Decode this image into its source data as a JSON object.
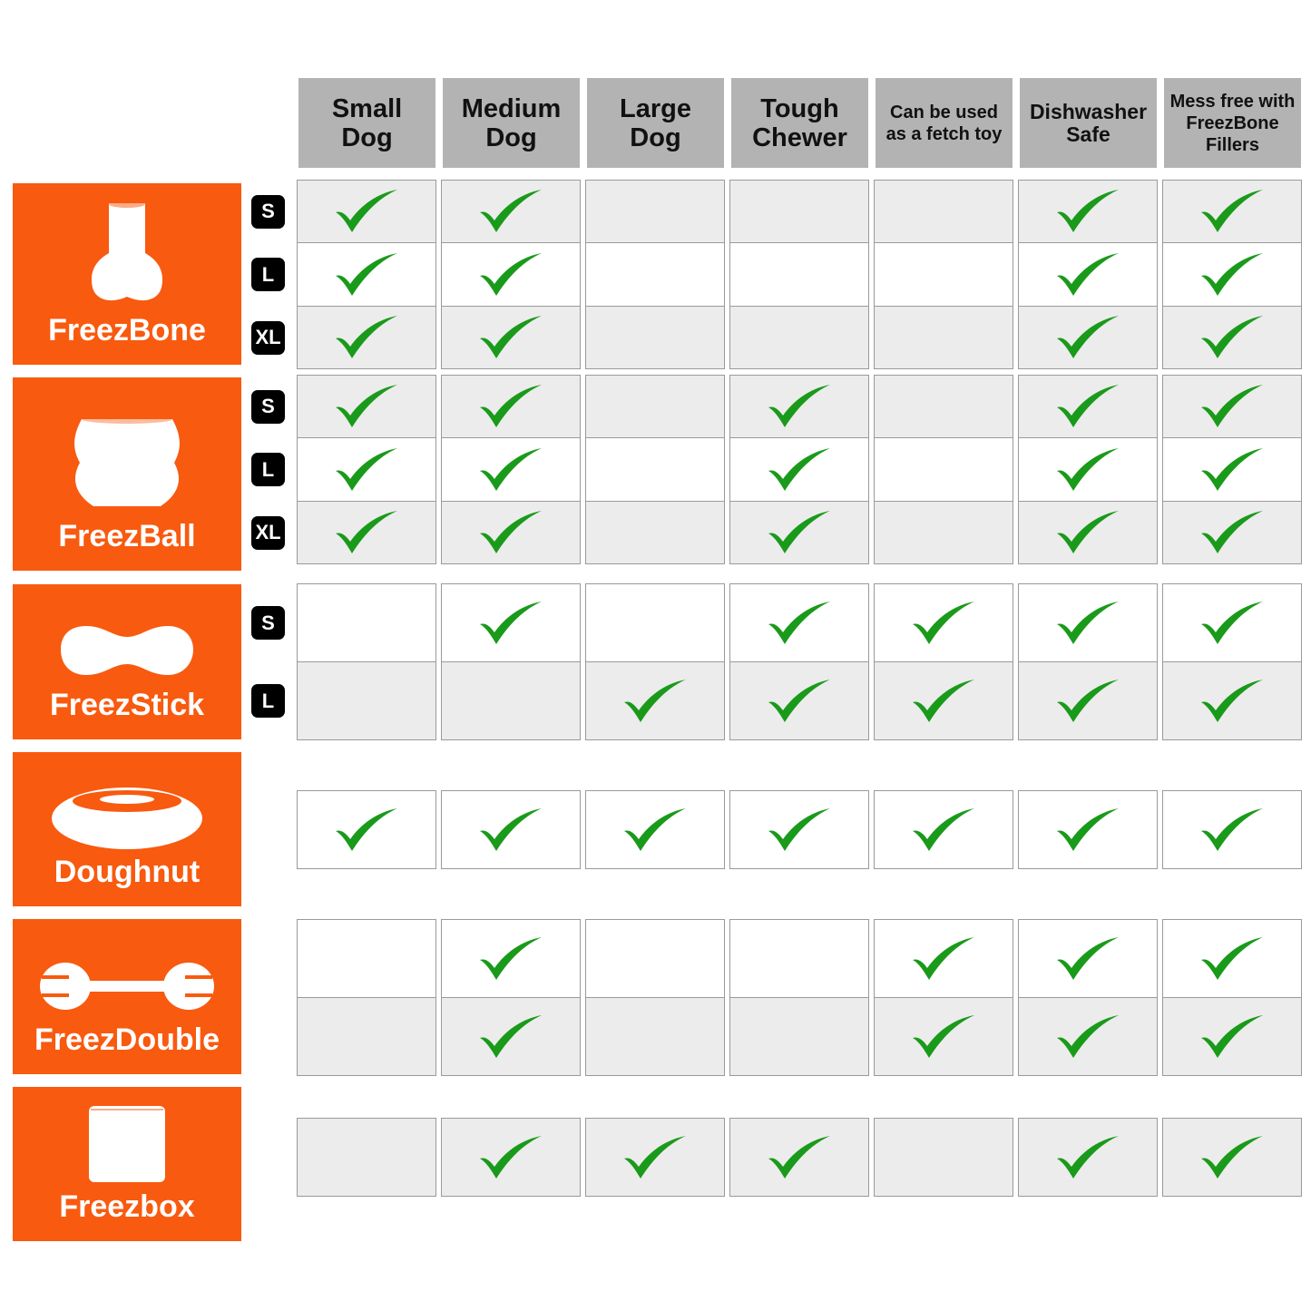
{
  "columns": [
    "Small Dog",
    "Medium Dog",
    "Large Dog",
    "Tough Chewer",
    "Can be used as a fetch toy",
    "Dishwasher Safe",
    "Mess free with FreezBone Fillers"
  ],
  "colors": {
    "brand_orange": "#f85a0f",
    "check_green": "#1a9a1a",
    "header_gray": "#b3b3b3",
    "row_gray": "#ececec"
  },
  "products": [
    {
      "name": "FreezBone",
      "icon": "bone-icon",
      "sizes": [
        "S",
        "L",
        "XL"
      ],
      "checks": [
        [
          1,
          1,
          0,
          0,
          0,
          1,
          1
        ],
        [
          1,
          1,
          0,
          0,
          0,
          1,
          1
        ],
        [
          1,
          1,
          0,
          0,
          0,
          1,
          1
        ]
      ]
    },
    {
      "name": "FreezBall",
      "icon": "ball-icon",
      "sizes": [
        "S",
        "L",
        "XL"
      ],
      "checks": [
        [
          1,
          1,
          0,
          1,
          0,
          1,
          1
        ],
        [
          1,
          1,
          0,
          1,
          0,
          1,
          1
        ],
        [
          1,
          1,
          0,
          1,
          0,
          1,
          1
        ]
      ]
    },
    {
      "name": "FreezStick",
      "icon": "stick-icon",
      "sizes": [
        "S",
        "L"
      ],
      "checks": [
        [
          0,
          1,
          0,
          1,
          1,
          1,
          1
        ],
        [
          0,
          0,
          1,
          1,
          1,
          1,
          1
        ]
      ]
    },
    {
      "name": "Doughnut",
      "icon": "doughnut-icon",
      "sizes": [
        ""
      ],
      "checks": [
        [
          1,
          1,
          1,
          1,
          1,
          1,
          1
        ]
      ]
    },
    {
      "name": "FreezDouble",
      "icon": "double-icon",
      "sizes": [
        "",
        ""
      ],
      "checks": [
        [
          0,
          1,
          0,
          0,
          1,
          1,
          1
        ],
        [
          0,
          1,
          0,
          0,
          1,
          1,
          1
        ]
      ]
    },
    {
      "name": "Freezbox",
      "icon": "box-icon",
      "sizes": [
        ""
      ],
      "checks": [
        [
          0,
          1,
          1,
          1,
          0,
          1,
          1
        ]
      ]
    }
  ]
}
